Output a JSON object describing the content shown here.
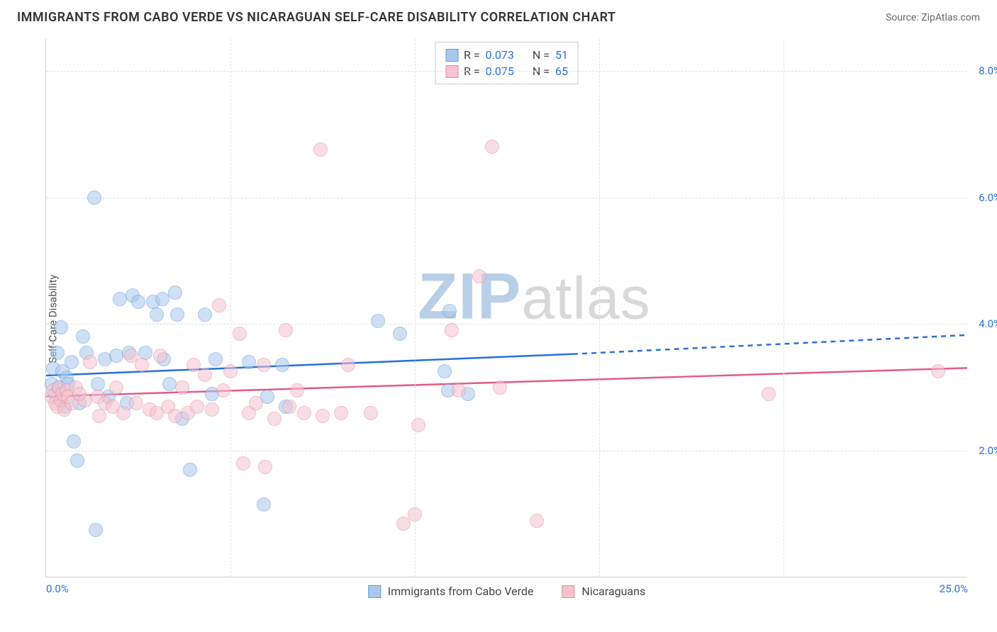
{
  "title": "IMMIGRANTS FROM CABO VERDE VS NICARAGUAN SELF-CARE DISABILITY CORRELATION CHART",
  "source_label": "Source: ",
  "source_value": "ZipAtlas.com",
  "ylabel": "Self-Care Disability",
  "watermark_a": "ZIP",
  "watermark_b": "atlas",
  "chart": {
    "type": "scatter",
    "background_color": "#ffffff",
    "grid_color": "#e0e0e0",
    "axis_color": "#d0d0d0",
    "tick_color": "#2a6fd6",
    "xlim": [
      0,
      25
    ],
    "ylim": [
      0,
      8.5
    ],
    "xticks": [
      0,
      25
    ],
    "xtick_labels": [
      "0.0%",
      "25.0%"
    ],
    "yticks": [
      2,
      4,
      6,
      8
    ],
    "ytick_labels": [
      "2.0%",
      "4.0%",
      "6.0%",
      "8.0%"
    ],
    "vgrid": [
      5,
      10,
      15,
      20
    ],
    "marker_radius": 10,
    "marker_border": 1.5,
    "marker_opacity": 0.55,
    "series": [
      {
        "id": "cabo",
        "label": "Immigrants from Cabo Verde",
        "fill": "#a8c8ee",
        "stroke": "#5f9ad9",
        "line_color": "#2a6fd6",
        "r_value": "0.073",
        "n_value": "51",
        "trend": {
          "y_at_x0": 3.18,
          "y_at_xsolid": 3.52,
          "x_solid_end": 14.3,
          "y_at_xmax": 3.82
        },
        "points": [
          [
            0.15,
            3.05
          ],
          [
            0.2,
            3.3
          ],
          [
            0.25,
            2.9
          ],
          [
            0.3,
            3.55
          ],
          [
            0.35,
            3.0
          ],
          [
            0.4,
            3.95
          ],
          [
            0.45,
            3.25
          ],
          [
            0.5,
            2.7
          ],
          [
            0.55,
            3.15
          ],
          [
            0.6,
            3.05
          ],
          [
            0.7,
            3.4
          ],
          [
            0.75,
            2.15
          ],
          [
            0.85,
            1.85
          ],
          [
            0.9,
            2.75
          ],
          [
            1.0,
            3.8
          ],
          [
            1.1,
            3.55
          ],
          [
            1.3,
            6.0
          ],
          [
            1.35,
            0.75
          ],
          [
            1.4,
            3.05
          ],
          [
            1.6,
            3.45
          ],
          [
            1.7,
            2.85
          ],
          [
            1.9,
            3.5
          ],
          [
            2.0,
            4.4
          ],
          [
            2.2,
            2.75
          ],
          [
            2.25,
            3.55
          ],
          [
            2.35,
            4.45
          ],
          [
            2.5,
            4.35
          ],
          [
            2.7,
            3.55
          ],
          [
            2.9,
            4.35
          ],
          [
            3.0,
            4.15
          ],
          [
            3.15,
            4.4
          ],
          [
            3.2,
            3.45
          ],
          [
            3.35,
            3.05
          ],
          [
            3.5,
            4.5
          ],
          [
            3.55,
            4.15
          ],
          [
            3.7,
            2.5
          ],
          [
            3.9,
            1.7
          ],
          [
            4.3,
            4.15
          ],
          [
            4.5,
            2.9
          ],
          [
            4.6,
            3.45
          ],
          [
            5.5,
            3.4
          ],
          [
            5.9,
            1.15
          ],
          [
            6.0,
            2.85
          ],
          [
            6.4,
            3.35
          ],
          [
            6.5,
            2.7
          ],
          [
            9.0,
            4.05
          ],
          [
            9.6,
            3.85
          ],
          [
            10.8,
            3.25
          ],
          [
            10.9,
            2.95
          ],
          [
            10.95,
            4.2
          ],
          [
            11.45,
            2.9
          ]
        ]
      },
      {
        "id": "nica",
        "label": "Nicaraguans",
        "fill": "#f5c3cf",
        "stroke": "#e88ba4",
        "line_color": "#e25b84",
        "r_value": "0.075",
        "n_value": "65",
        "trend": {
          "y_at_x0": 2.85,
          "y_at_xmax": 3.3
        },
        "points": [
          [
            0.15,
            2.85
          ],
          [
            0.2,
            2.95
          ],
          [
            0.25,
            2.75
          ],
          [
            0.3,
            2.7
          ],
          [
            0.35,
            3.0
          ],
          [
            0.4,
            2.8
          ],
          [
            0.45,
            2.9
          ],
          [
            0.5,
            2.65
          ],
          [
            0.55,
            2.95
          ],
          [
            0.6,
            2.85
          ],
          [
            0.7,
            2.75
          ],
          [
            0.8,
            3.0
          ],
          [
            0.9,
            2.9
          ],
          [
            1.05,
            2.8
          ],
          [
            1.2,
            3.4
          ],
          [
            1.4,
            2.85
          ],
          [
            1.45,
            2.55
          ],
          [
            1.6,
            2.75
          ],
          [
            1.8,
            2.7
          ],
          [
            1.9,
            3.0
          ],
          [
            2.1,
            2.6
          ],
          [
            2.3,
            3.5
          ],
          [
            2.45,
            2.75
          ],
          [
            2.6,
            3.35
          ],
          [
            2.8,
            2.65
          ],
          [
            3.0,
            2.6
          ],
          [
            3.1,
            3.5
          ],
          [
            3.3,
            2.7
          ],
          [
            3.5,
            2.55
          ],
          [
            3.7,
            3.0
          ],
          [
            3.85,
            2.6
          ],
          [
            4.0,
            3.35
          ],
          [
            4.1,
            2.7
          ],
          [
            4.3,
            3.2
          ],
          [
            4.5,
            2.65
          ],
          [
            4.7,
            4.3
          ],
          [
            4.8,
            2.95
          ],
          [
            5.0,
            3.25
          ],
          [
            5.25,
            3.85
          ],
          [
            5.35,
            1.8
          ],
          [
            5.5,
            2.6
          ],
          [
            5.7,
            2.75
          ],
          [
            5.9,
            3.35
          ],
          [
            5.95,
            1.75
          ],
          [
            6.2,
            2.5
          ],
          [
            6.5,
            3.9
          ],
          [
            6.6,
            2.7
          ],
          [
            6.8,
            2.95
          ],
          [
            7.0,
            2.6
          ],
          [
            7.45,
            6.75
          ],
          [
            7.5,
            2.55
          ],
          [
            8.0,
            2.6
          ],
          [
            8.2,
            3.35
          ],
          [
            8.8,
            2.6
          ],
          [
            9.7,
            0.85
          ],
          [
            10.0,
            1.0
          ],
          [
            10.1,
            2.4
          ],
          [
            11.0,
            3.9
          ],
          [
            11.2,
            2.95
          ],
          [
            11.75,
            4.75
          ],
          [
            12.1,
            6.8
          ],
          [
            12.3,
            3.0
          ],
          [
            13.3,
            0.9
          ],
          [
            19.6,
            2.9
          ],
          [
            24.2,
            3.25
          ]
        ]
      }
    ],
    "legend_top": {
      "r_label": "R =",
      "n_label": "N ="
    }
  }
}
